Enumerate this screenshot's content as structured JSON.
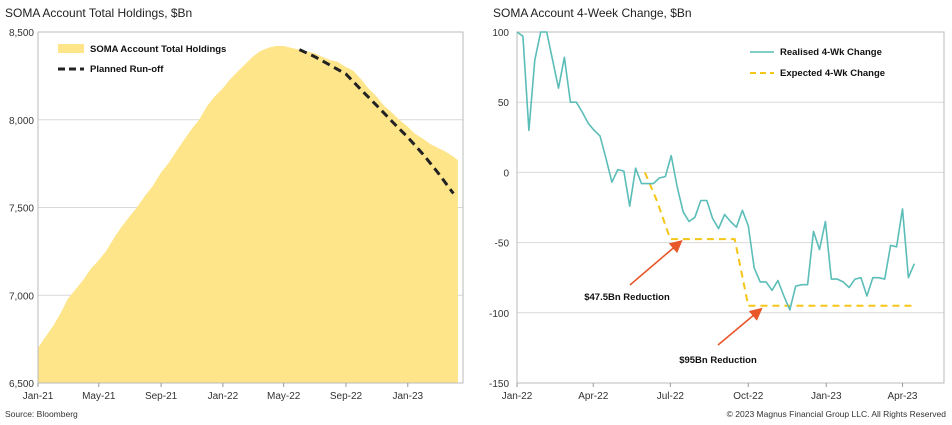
{
  "left_title": "SOMA Account Total Holdings, $Bn",
  "right_title": "SOMA Account 4-Week Change, $Bn",
  "source": "Source: Bloomberg",
  "copyright": "© 2023 Magnus Financial Group LLC. All Rights Reserved",
  "colors": {
    "holdings": "#FEE58A",
    "runoff": "#222222",
    "realised": "#5BBDB8",
    "expected": "#F5C518",
    "arrow": "#E8572A",
    "grid": "#d9d9d9"
  },
  "chart_data": [
    {
      "type": "area",
      "title": "SOMA Account Total Holdings, $Bn",
      "x_ticks": [
        "Jan-21",
        "May-21",
        "Sep-21",
        "Jan-22",
        "May-22",
        "Sep-22",
        "Jan-23"
      ],
      "y_ticks": [
        "6,500",
        "7,000",
        "7,500",
        "8,000",
        "8,500"
      ],
      "ylim": [
        6500,
        8500
      ],
      "legend_position": "top-left",
      "series": [
        {
          "name": "SOMA Account Total Holdings",
          "kind": "area",
          "x": [
            "2021-01-01",
            "2021-01-15",
            "2021-02-01",
            "2021-02-15",
            "2021-03-01",
            "2021-03-15",
            "2021-04-01",
            "2021-04-15",
            "2021-05-01",
            "2021-05-15",
            "2021-06-01",
            "2021-06-15",
            "2021-07-01",
            "2021-07-15",
            "2021-08-01",
            "2021-08-15",
            "2021-09-01",
            "2021-09-15",
            "2021-10-01",
            "2021-10-15",
            "2021-11-01",
            "2021-11-15",
            "2021-12-01",
            "2021-12-15",
            "2022-01-01",
            "2022-01-15",
            "2022-02-01",
            "2022-02-15",
            "2022-03-01",
            "2022-03-15",
            "2022-04-01",
            "2022-04-15",
            "2022-05-01",
            "2022-05-15",
            "2022-06-01",
            "2022-06-15",
            "2022-07-01",
            "2022-07-15",
            "2022-08-01",
            "2022-08-15",
            "2022-09-01",
            "2022-09-15",
            "2022-10-01",
            "2022-10-15",
            "2022-11-01",
            "2022-11-15",
            "2022-12-01",
            "2022-12-15",
            "2023-01-01",
            "2023-01-15",
            "2023-02-01",
            "2023-02-15",
            "2023-03-01",
            "2023-03-15",
            "2023-04-01",
            "2023-04-10"
          ],
          "values": [
            6700,
            6760,
            6830,
            6900,
            6980,
            7030,
            7090,
            7150,
            7200,
            7250,
            7330,
            7390,
            7450,
            7500,
            7570,
            7620,
            7700,
            7750,
            7820,
            7880,
            7950,
            8000,
            8080,
            8130,
            8180,
            8230,
            8280,
            8320,
            8360,
            8390,
            8410,
            8420,
            8420,
            8410,
            8400,
            8390,
            8380,
            8360,
            8340,
            8330,
            8300,
            8280,
            8230,
            8180,
            8130,
            8080,
            8040,
            8000,
            7960,
            7920,
            7890,
            7860,
            7840,
            7820,
            7790,
            7770
          ]
        },
        {
          "name": "Planned Run-off",
          "kind": "line",
          "x": [
            "2022-06-01",
            "2022-07-01",
            "2022-08-01",
            "2022-09-01",
            "2022-10-01",
            "2022-11-01",
            "2022-12-01",
            "2023-01-01",
            "2023-02-01",
            "2023-03-01",
            "2023-04-01"
          ],
          "values": [
            8400,
            8360,
            8310,
            8260,
            8170,
            8080,
            7990,
            7900,
            7800,
            7700,
            7580
          ]
        }
      ]
    },
    {
      "type": "line",
      "title": "SOMA Account 4-Week Change, $Bn",
      "x_ticks": [
        "Jan-22",
        "Apr-22",
        "Jul-22",
        "Oct-22",
        "Jan-23",
        "Apr-23"
      ],
      "y_ticks": [
        "100",
        "50",
        "0",
        "-50",
        "-100",
        "-150"
      ],
      "ylim": [
        -150,
        100
      ],
      "legend_position": "top-right",
      "series": [
        {
          "name": "Realised 4-Wk Change",
          "x": [
            "2022-01-01",
            "2022-01-08",
            "2022-01-15",
            "2022-01-22",
            "2022-01-29",
            "2022-02-05",
            "2022-02-12",
            "2022-02-19",
            "2022-02-26",
            "2022-03-05",
            "2022-03-12",
            "2022-03-19",
            "2022-03-26",
            "2022-04-02",
            "2022-04-09",
            "2022-04-16",
            "2022-04-23",
            "2022-04-30",
            "2022-05-07",
            "2022-05-14",
            "2022-05-21",
            "2022-05-28",
            "2022-06-04",
            "2022-06-11",
            "2022-06-18",
            "2022-06-25",
            "2022-07-02",
            "2022-07-09",
            "2022-07-16",
            "2022-07-23",
            "2022-07-30",
            "2022-08-06",
            "2022-08-13",
            "2022-08-20",
            "2022-08-27",
            "2022-09-03",
            "2022-09-10",
            "2022-09-17",
            "2022-09-24",
            "2022-10-01",
            "2022-10-08",
            "2022-10-15",
            "2022-10-22",
            "2022-10-29",
            "2022-11-05",
            "2022-11-12",
            "2022-11-19",
            "2022-11-26",
            "2022-12-03",
            "2022-12-10",
            "2022-12-17",
            "2022-12-24",
            "2022-12-31",
            "2023-01-07",
            "2023-01-14",
            "2023-01-21",
            "2023-01-28",
            "2023-02-04",
            "2023-02-11",
            "2023-02-18",
            "2023-02-25",
            "2023-03-04",
            "2023-03-11",
            "2023-03-18",
            "2023-03-25",
            "2023-04-01",
            "2023-04-08",
            "2023-04-15"
          ],
          "values": [
            100,
            97,
            30,
            80,
            100,
            100,
            80,
            60,
            82,
            50,
            50,
            43,
            35,
            30,
            26,
            10,
            -7,
            2,
            1,
            -24,
            3,
            -8,
            -8,
            -8,
            -4,
            -3,
            12,
            -10,
            -28,
            -35,
            -32,
            -20,
            -20,
            -33,
            -40,
            -30,
            -35,
            -39,
            -27,
            -38,
            -68,
            -78,
            -78,
            -84,
            -77,
            -88,
            -98,
            -81,
            -80,
            -80,
            -42,
            -55,
            -35,
            -76,
            -76,
            -78,
            -82,
            -76,
            -75,
            -88,
            -75,
            -75,
            -76,
            -52,
            -53,
            -26,
            -75,
            -65
          ]
        },
        {
          "name": "Expected 4-Wk Change",
          "x": [
            "2022-06-01",
            "2022-06-15",
            "2022-07-01",
            "2022-07-15",
            "2022-08-01",
            "2022-08-15",
            "2022-09-01",
            "2022-09-15",
            "2022-10-01",
            "2022-10-15",
            "2022-11-01",
            "2023-01-01",
            "2023-04-15"
          ],
          "values": [
            0,
            -20,
            -47.5,
            -47.5,
            -47.5,
            -47.5,
            -47.5,
            -47.5,
            -95,
            -95,
            -95,
            -95,
            -95
          ]
        }
      ],
      "annotations": [
        {
          "text": "$47.5Bn Reduction"
        },
        {
          "text": "$95Bn Reduction"
        }
      ]
    }
  ]
}
